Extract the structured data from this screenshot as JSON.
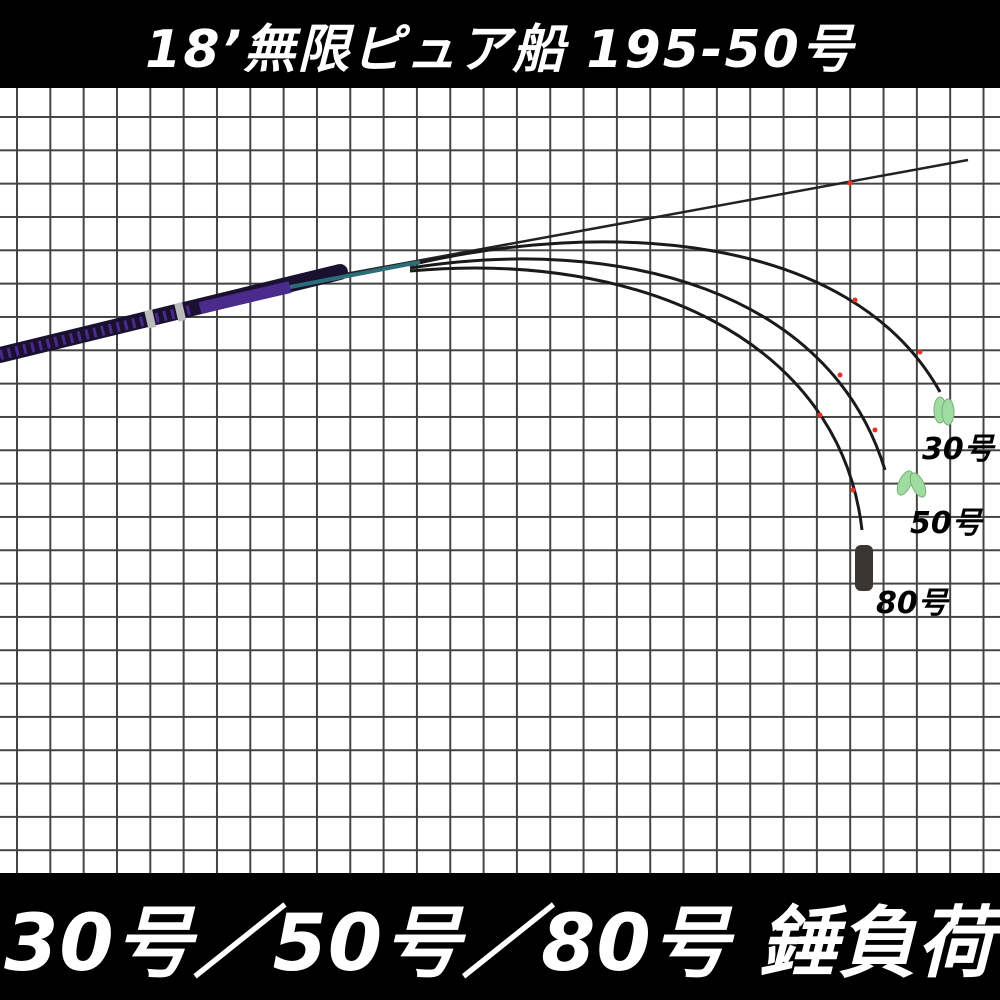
{
  "header": {
    "title": "18’無限ピュア船 195-50号"
  },
  "footer": {
    "caption": "30号／50号／80号 錘負荷"
  },
  "loads": [
    {
      "label": "30号",
      "sinker": "green-sinker-icon"
    },
    {
      "label": "50号",
      "sinker": "green-sinker-icon"
    },
    {
      "label": "80号",
      "sinker": "dark-sinker-icon"
    }
  ],
  "colors": {
    "rod_grip": "#4a2a8a",
    "guide_wrap": "#e8321e",
    "sinker_green": "#9fdc9f",
    "sinker_dark": "#3a3530"
  }
}
